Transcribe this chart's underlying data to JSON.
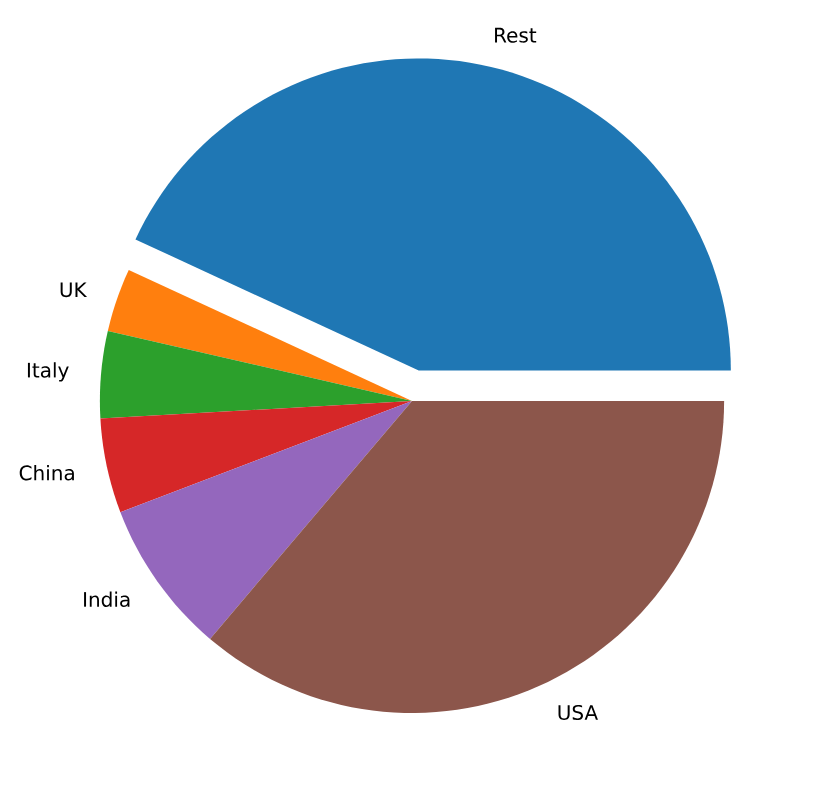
{
  "chart_data": {
    "type": "pie",
    "categories": [
      "Rest",
      "UK",
      "Italy",
      "China",
      "India",
      "USA"
    ],
    "values": [
      43.1,
      3.3,
      4.5,
      4.9,
      8.0,
      36.2
    ],
    "colors": [
      "#1f77b4",
      "#ff7f0e",
      "#2ca02c",
      "#d62728",
      "#9467bd",
      "#8c564b"
    ]
  }
}
